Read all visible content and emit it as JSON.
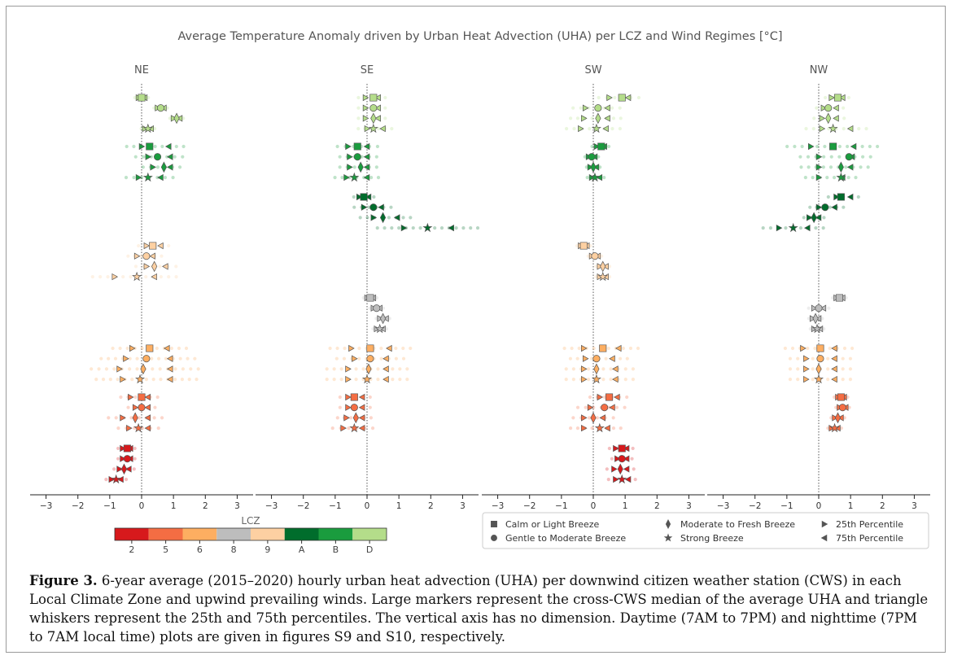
{
  "chart_data": {
    "type": "scatter",
    "title": "Average Temperature Anomaly driven by Urban Heat Advection (UHA) per LCZ and Wind Regimes [°C]",
    "panels": [
      "NE",
      "SE",
      "SW",
      "NW"
    ],
    "xlim": [
      -3.5,
      3.5
    ],
    "xticks": [
      -3,
      -2,
      -1,
      0,
      1,
      2,
      3
    ],
    "lcz_order": [
      "D",
      "B",
      "A",
      "9",
      "8",
      "6",
      "5",
      "2"
    ],
    "lcz_colors": {
      "2": "#d7191c",
      "5": "#f46d43",
      "6": "#fdae61",
      "8": "#bdbdbd",
      "9": "#fdd0a2",
      "A": "#006d2c",
      "B": "#1a9c3e",
      "D": "#b4dd8a"
    },
    "wind_regimes": [
      "Calm or Light Breeze",
      "Gentle to Moderate Breeze",
      "Moderate to Fresh Breeze",
      "Strong Breeze"
    ],
    "series": [
      {
        "panel": "NE",
        "lcz": "D",
        "median": [
          0.0,
          0.6,
          1.1,
          0.2
        ],
        "p25": [
          -0.1,
          0.5,
          1.0,
          0.1
        ],
        "p75": [
          0.1,
          0.7,
          1.2,
          0.3
        ]
      },
      {
        "panel": "NE",
        "lcz": "B",
        "median": [
          0.25,
          0.5,
          0.7,
          0.2
        ],
        "p25": [
          0.0,
          0.2,
          0.35,
          -0.1
        ],
        "p75": [
          0.85,
          0.9,
          0.9,
          0.6
        ]
      },
      {
        "panel": "NE",
        "lcz": "9",
        "median": [
          0.35,
          0.15,
          0.4,
          -0.15
        ],
        "p25": [
          0.15,
          -0.15,
          0.15,
          -0.85
        ],
        "p75": [
          0.6,
          0.35,
          0.75,
          0.4
        ]
      },
      {
        "panel": "NE",
        "lcz": "6",
        "median": [
          0.25,
          0.15,
          0.05,
          -0.05
        ],
        "p25": [
          -0.3,
          -0.5,
          -0.7,
          -0.6
        ],
        "p75": [
          0.8,
          0.9,
          0.9,
          0.9
        ]
      },
      {
        "panel": "NE",
        "lcz": "5",
        "median": [
          0.0,
          0.0,
          -0.2,
          -0.1
        ],
        "p25": [
          -0.35,
          -0.2,
          -0.6,
          -0.4
        ],
        "p75": [
          0.2,
          0.2,
          0.2,
          0.2
        ]
      },
      {
        "panel": "NE",
        "lcz": "2",
        "median": [
          -0.45,
          -0.45,
          -0.55,
          -0.8
        ],
        "p25": [
          -0.6,
          -0.6,
          -0.7,
          -0.95
        ],
        "p75": [
          -0.35,
          -0.35,
          -0.4,
          -0.65
        ]
      },
      {
        "panel": "SE",
        "lcz": "D",
        "median": [
          0.2,
          0.2,
          0.2,
          0.2
        ],
        "p25": [
          -0.05,
          -0.05,
          -0.05,
          0.0
        ],
        "p75": [
          0.35,
          0.35,
          0.35,
          0.5
        ]
      },
      {
        "panel": "SE",
        "lcz": "B",
        "median": [
          -0.3,
          -0.3,
          -0.2,
          -0.4
        ],
        "p25": [
          -0.6,
          -0.55,
          -0.55,
          -0.65
        ],
        "p75": [
          0.0,
          0.0,
          0.0,
          0.0
        ]
      },
      {
        "panel": "SE",
        "lcz": "A",
        "median": [
          -0.1,
          0.2,
          0.5,
          1.9
        ],
        "p25": [
          -0.25,
          -0.1,
          0.2,
          1.15
        ],
        "p75": [
          0.05,
          0.45,
          0.95,
          2.65
        ]
      },
      {
        "panel": "SE",
        "lcz": "8",
        "median": [
          0.1,
          0.3,
          0.5,
          0.4
        ],
        "p25": [
          0.0,
          0.2,
          0.4,
          0.3
        ],
        "p75": [
          0.2,
          0.4,
          0.6,
          0.5
        ]
      },
      {
        "panel": "SE",
        "lcz": "6",
        "median": [
          0.1,
          0.1,
          0.05,
          0.0
        ],
        "p25": [
          -0.5,
          -0.4,
          -0.6,
          -0.6
        ],
        "p75": [
          0.7,
          0.6,
          0.6,
          0.6
        ]
      },
      {
        "panel": "SE",
        "lcz": "5",
        "median": [
          -0.4,
          -0.4,
          -0.35,
          -0.4
        ],
        "p25": [
          -0.6,
          -0.6,
          -0.65,
          -0.75
        ],
        "p75": [
          -0.15,
          -0.15,
          -0.15,
          -0.15
        ]
      },
      {
        "panel": "SW",
        "lcz": "D",
        "median": [
          0.9,
          0.15,
          0.15,
          0.1
        ],
        "p25": [
          0.5,
          -0.25,
          -0.3,
          -0.4
        ],
        "p75": [
          1.1,
          0.45,
          0.45,
          0.4
        ]
      },
      {
        "panel": "SW",
        "lcz": "B",
        "median": [
          0.25,
          -0.05,
          0.0,
          0.05
        ],
        "p25": [
          0.1,
          -0.15,
          -0.1,
          -0.05
        ],
        "p75": [
          0.35,
          0.05,
          0.1,
          0.2
        ]
      },
      {
        "panel": "SW",
        "lcz": "9",
        "median": [
          -0.3,
          0.05,
          0.3,
          0.3
        ],
        "p25": [
          -0.4,
          -0.05,
          0.2,
          0.2
        ],
        "p75": [
          -0.2,
          0.15,
          0.4,
          0.4
        ]
      },
      {
        "panel": "SW",
        "lcz": "6",
        "median": [
          0.3,
          0.1,
          0.1,
          0.1
        ],
        "p25": [
          -0.3,
          -0.25,
          -0.3,
          -0.3
        ],
        "p75": [
          0.8,
          0.6,
          0.7,
          0.7
        ]
      },
      {
        "panel": "SW",
        "lcz": "5",
        "median": [
          0.5,
          0.35,
          0.0,
          0.2
        ],
        "p25": [
          0.2,
          -0.1,
          -0.3,
          -0.3
        ],
        "p75": [
          0.75,
          0.6,
          0.3,
          0.45
        ]
      },
      {
        "panel": "SW",
        "lcz": "2",
        "median": [
          0.9,
          0.9,
          0.85,
          0.9
        ],
        "p25": [
          0.7,
          0.75,
          0.65,
          0.7
        ],
        "p75": [
          1.05,
          1.05,
          1.05,
          1.1
        ]
      },
      {
        "panel": "NW",
        "lcz": "D",
        "median": [
          0.6,
          0.3,
          0.3,
          0.45
        ],
        "p25": [
          0.4,
          0.15,
          0.1,
          0.1
        ],
        "p75": [
          0.75,
          0.55,
          0.55,
          1.0
        ]
      },
      {
        "panel": "NW",
        "lcz": "B",
        "median": [
          0.45,
          0.95,
          0.7,
          0.7
        ],
        "p25": [
          -0.25,
          0.0,
          0.0,
          0.0
        ],
        "p75": [
          1.1,
          1.05,
          1.0,
          0.75
        ]
      },
      {
        "panel": "NW",
        "lcz": "A",
        "median": [
          0.7,
          0.2,
          -0.15,
          -0.8
        ],
        "p25": [
          0.55,
          0.0,
          -0.3,
          -1.25
        ],
        "p75": [
          1.0,
          0.5,
          0.0,
          -0.35
        ]
      },
      {
        "panel": "NW",
        "lcz": "8",
        "median": [
          0.65,
          0.0,
          -0.1,
          -0.05
        ],
        "p25": [
          0.55,
          -0.15,
          -0.2,
          -0.15
        ],
        "p75": [
          0.75,
          0.15,
          0.0,
          0.05
        ]
      },
      {
        "panel": "NW",
        "lcz": "6",
        "median": [
          0.05,
          0.05,
          0.0,
          0.0
        ],
        "p25": [
          -0.5,
          -0.4,
          -0.4,
          -0.4
        ],
        "p75": [
          0.5,
          0.5,
          0.5,
          0.5
        ]
      },
      {
        "panel": "NW",
        "lcz": "5",
        "median": [
          0.7,
          0.75,
          0.6,
          0.5
        ],
        "p25": [
          0.6,
          0.65,
          0.5,
          0.4
        ],
        "p75": [
          0.8,
          0.85,
          0.7,
          0.6
        ]
      }
    ],
    "colorbar": {
      "label": "LCZ",
      "ticks": [
        "2",
        "5",
        "6",
        "8",
        "9",
        "A",
        "B",
        "D"
      ]
    },
    "legend": {
      "placement": "bottom-right",
      "entries": [
        {
          "marker": "square",
          "label": "Calm or Light Breeze"
        },
        {
          "marker": "circle",
          "label": "Gentle to Moderate Breeze"
        },
        {
          "marker": "diamond",
          "label": "Moderate to Fresh Breeze"
        },
        {
          "marker": "star",
          "label": "Strong Breeze"
        },
        {
          "marker": "triangle-right",
          "label": "25th Percentile"
        },
        {
          "marker": "triangle-left",
          "label": "75th Percentile"
        }
      ]
    }
  },
  "caption": {
    "label": "Figure 3.",
    "text": " 6-year average (2015–2020) hourly urban heat advection (UHA) per downwind citizen weather station (CWS) in each Local Climate Zone and upwind prevailing winds. Large markers represent the cross-CWS median of the average UHA and triangle whiskers represent the 25th and 75th percentiles. The vertical axis has no dimension. Daytime (7AM to 7PM) and nighttime (7PM to 7AM local time) plots are given in figures S9 and S10, respectively."
  }
}
